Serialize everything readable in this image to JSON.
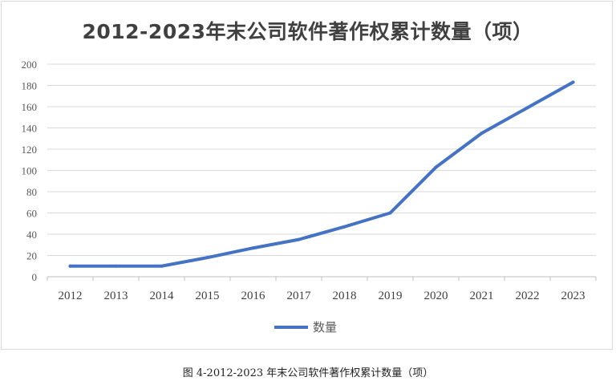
{
  "chart_data": {
    "type": "line",
    "title": "2012-2023年末公司软件著作权累计数量（项）",
    "categories": [
      "2012",
      "2013",
      "2014",
      "2015",
      "2016",
      "2017",
      "2018",
      "2019",
      "2020",
      "2021",
      "2022",
      "2023"
    ],
    "series": [
      {
        "name": "数量",
        "values": [
          10,
          10,
          10,
          18,
          27,
          35,
          47,
          60,
          103,
          135,
          159,
          183
        ]
      }
    ],
    "ylim": [
      0,
      200
    ],
    "yticks": [
      "0",
      "20",
      "40",
      "60",
      "80",
      "100",
      "120",
      "140",
      "160",
      "180",
      "200"
    ],
    "grid": true,
    "legend": "bottom",
    "line_color": "#4472c4"
  },
  "caption": "图 4-2012-2023 年末公司软件著作权累计数量（项）"
}
